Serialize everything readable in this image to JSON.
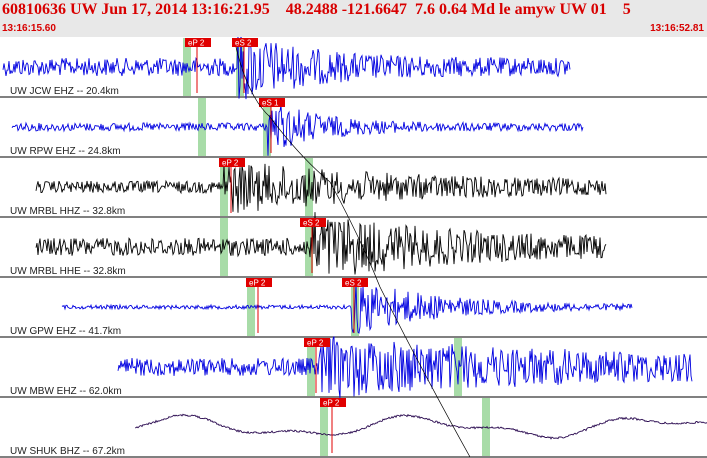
{
  "header": {
    "title": "60810636 UW Jun 17, 2014 13:16:21.95    48.2488 -121.6647  7.6 0.64 Md le amyw UW 01    5",
    "start_time": "13:16:15.60",
    "end_time": "13:16:52.81"
  },
  "colors": {
    "header_bg": "#e8e8e8",
    "header_text": "#d80000",
    "pick_bg": "#e00000",
    "pick_window": "#a8dca8",
    "trace_blue": "#0000e0",
    "trace_black": "#000000",
    "trace_purple": "#2a0a50"
  },
  "traces": [
    {
      "station": "UW JCW EHZ -- 20.4km",
      "color": "#0000e0",
      "start": 3,
      "end": 570,
      "amp": 9,
      "burst_start": 238,
      "burst_amp": 30,
      "decay": 0.015,
      "picks": [
        {
          "label": "eP 2",
          "x": 185
        },
        {
          "label": "eS 2",
          "x": 232
        }
      ],
      "windows": [
        187,
        240
      ]
    },
    {
      "station": "UW RPW EHZ -- 24.8km",
      "color": "#0000e0",
      "start": 12,
      "end": 583,
      "amp": 4,
      "burst_start": 268,
      "burst_amp": 26,
      "decay": 0.02,
      "picks": [
        {
          "label": "eS 1",
          "x": 259
        }
      ],
      "windows": [
        202,
        267
      ]
    },
    {
      "station": "UW MRBL HHZ -- 32.8km",
      "color": "#000000",
      "start": 36,
      "end": 606,
      "amp": 6,
      "burst_start": 224,
      "burst_amp": 22,
      "decay": 0.006,
      "picks": [
        {
          "label": "eP 2",
          "x": 219
        }
      ],
      "windows": [
        224,
        309
      ]
    },
    {
      "station": "UW MRBL HHE -- 32.8km",
      "color": "#000000",
      "start": 36,
      "end": 606,
      "amp": 9,
      "burst_start": 310,
      "burst_amp": 28,
      "decay": 0.008,
      "picks": [
        {
          "label": "eS 2",
          "x": 300
        }
      ],
      "windows": [
        224,
        309
      ]
    },
    {
      "station": "UW GPW EHZ -- 41.7km",
      "color": "#0000e0",
      "start": 62,
      "end": 632,
      "amp": 2,
      "burst_start": 352,
      "burst_amp": 28,
      "decay": 0.012,
      "picks": [
        {
          "label": "eP 2",
          "x": 246
        },
        {
          "label": "eS 2",
          "x": 342
        }
      ],
      "windows": [
        251,
        355
      ]
    },
    {
      "station": "UW MBW EHZ -- 62.0km",
      "color": "#0000e0",
      "start": 118,
      "end": 692,
      "amp": 9,
      "burst_start": 320,
      "burst_amp": 24,
      "decay": 0.004,
      "picks": [
        {
          "label": "eP 2",
          "x": 304
        }
      ],
      "windows": [
        311,
        458
      ]
    },
    {
      "station": "UW SHUK BHZ -- 67.2km",
      "color": "#2a0a50",
      "start": 135,
      "end": 707,
      "amp": 1,
      "burst_start": 330,
      "burst_amp": 4,
      "decay": 0.01,
      "picks": [
        {
          "label": "eP 2",
          "x": 320
        }
      ],
      "windows": [
        324,
        486
      ]
    }
  ]
}
